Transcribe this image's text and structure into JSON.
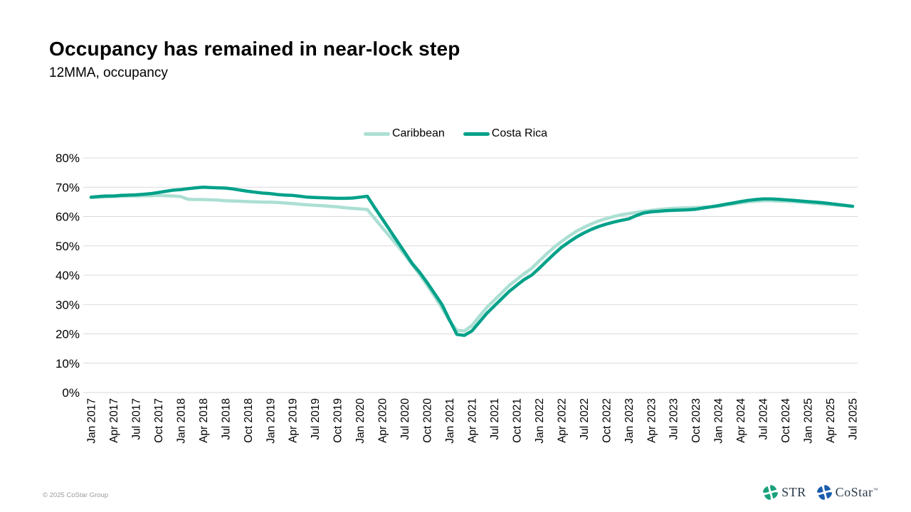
{
  "header": {
    "title": "Occupancy has remained in near-lock step",
    "subtitle": "12MMA, occupancy"
  },
  "footer": {
    "copyright": "© 2025 CoStar Group",
    "logos": [
      {
        "icon": "str-pinwheel-icon",
        "label": "STR",
        "color": "#1aa17c"
      },
      {
        "icon": "costar-pinwheel-icon",
        "label": "CoStar",
        "tm": "™",
        "color": "#1a5dad"
      }
    ]
  },
  "chart_data": {
    "type": "line",
    "title": "Occupancy has remained in near-lock step",
    "subtitle": "12MMA, occupancy",
    "grid": "horizontal",
    "grid_color": "#d9d9d9",
    "legend_position": "top-center",
    "ylim": [
      0,
      80
    ],
    "y_tick_labels": [
      "80%",
      "70%",
      "60%",
      "50%",
      "40%",
      "30%",
      "20%",
      "10%",
      "0%"
    ],
    "x_start": "Jan 2017",
    "x_end": "Jul 2025",
    "x_interval": "monthly",
    "x_tick_every_months": 3,
    "x_tick_labels": [
      "Jan 2017",
      "Apr 2017",
      "Jul 2017",
      "Oct 2017",
      "Jan 2018",
      "Apr 2018",
      "Jul 2018",
      "Oct 2018",
      "Jan 2019",
      "Apr 2019",
      "Jul 2019",
      "Oct 2019",
      "Jan 2020",
      "Apr 2020",
      "Jul 2020",
      "Oct 2020",
      "Jan 2021",
      "Apr 2021",
      "Jul 2021",
      "Oct 2021",
      "Jan 2022",
      "Apr 2022",
      "Jul 2022",
      "Oct 2022",
      "Jan 2023",
      "Apr 2023",
      "Jul 2023",
      "Oct 2023",
      "Jan 2024",
      "Apr 2024",
      "Jul 2024",
      "Oct 2024",
      "Jan 2025",
      "Apr 2025",
      "Jul 2025"
    ],
    "series": [
      {
        "name": "Caribbean",
        "color": "#acdfd3",
        "values": [
          66.5,
          66.6,
          66.7,
          66.8,
          66.9,
          67.0,
          67.0,
          67.1,
          67.1,
          67.2,
          67.1,
          67.0,
          66.8,
          65.9,
          65.8,
          65.8,
          65.7,
          65.6,
          65.4,
          65.3,
          65.2,
          65.1,
          65.0,
          64.9,
          64.9,
          64.8,
          64.6,
          64.4,
          64.2,
          64.0,
          63.8,
          63.7,
          63.5,
          63.3,
          63.0,
          62.8,
          62.6,
          62.4,
          59.3,
          56.2,
          53.2,
          50.2,
          47.0,
          43.6,
          40.2,
          36.6,
          32.8,
          28.8,
          24.5,
          21.2,
          21.0,
          22.8,
          26.0,
          29.0,
          31.5,
          34.0,
          36.5,
          38.5,
          40.5,
          42.3,
          44.8,
          47.2,
          49.5,
          51.5,
          53.3,
          55.0,
          56.3,
          57.5,
          58.5,
          59.3,
          60.0,
          60.6,
          61.0,
          61.4,
          61.8,
          62.1,
          62.4,
          62.6,
          62.8,
          62.9,
          63.0,
          63.1,
          63.2,
          63.3,
          63.5,
          63.9,
          64.3,
          64.7,
          65.0,
          65.2,
          65.4,
          65.4,
          65.3,
          65.2,
          65.1,
          64.9,
          64.7,
          64.5,
          64.3,
          64.1,
          63.9,
          63.7,
          63.5
        ]
      },
      {
        "name": "Costa Rica",
        "color": "#00a189",
        "values": [
          66.6,
          66.8,
          67.0,
          67.0,
          67.2,
          67.3,
          67.4,
          67.6,
          67.8,
          68.2,
          68.6,
          69.0,
          69.2,
          69.5,
          69.8,
          70.0,
          69.9,
          69.8,
          69.7,
          69.4,
          69.0,
          68.6,
          68.3,
          68.0,
          67.8,
          67.5,
          67.3,
          67.2,
          66.9,
          66.6,
          66.5,
          66.4,
          66.3,
          66.2,
          66.2,
          66.3,
          66.6,
          66.9,
          63.0,
          59.2,
          55.4,
          51.6,
          47.8,
          44.0,
          41.0,
          37.5,
          33.8,
          30.0,
          24.8,
          19.8,
          19.5,
          21.0,
          24.0,
          27.0,
          29.5,
          32.0,
          34.5,
          36.5,
          38.5,
          40.0,
          42.3,
          44.8,
          47.2,
          49.5,
          51.3,
          53.0,
          54.4,
          55.6,
          56.6,
          57.4,
          58.1,
          58.7,
          59.2,
          60.3,
          61.2,
          61.6,
          61.8,
          62.0,
          62.1,
          62.2,
          62.3,
          62.5,
          62.9,
          63.3,
          63.7,
          64.2,
          64.6,
          65.1,
          65.5,
          65.8,
          66.0,
          66.0,
          65.9,
          65.7,
          65.5,
          65.3,
          65.1,
          64.9,
          64.7,
          64.4,
          64.1,
          63.8,
          63.5
        ]
      }
    ]
  }
}
